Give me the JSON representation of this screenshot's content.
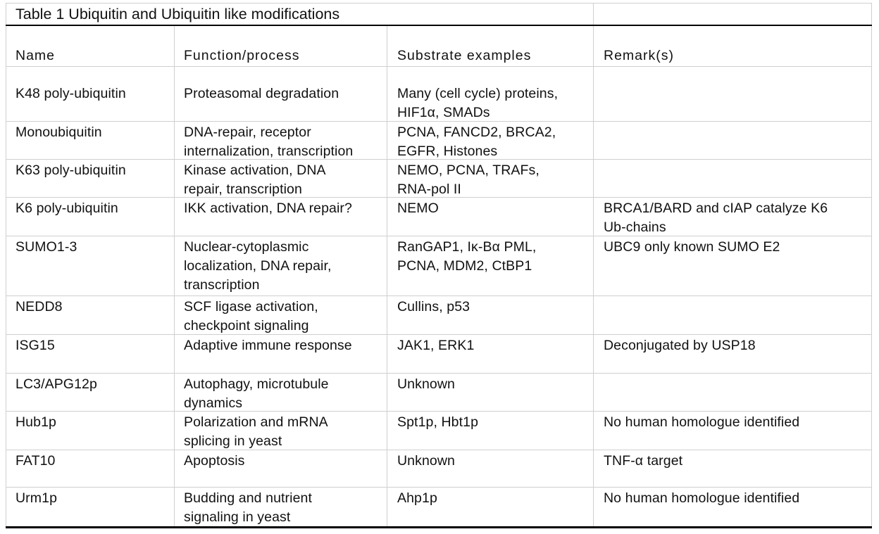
{
  "table": {
    "title": "Table 1 Ubiquitin and Ubiquitin like modifications",
    "headers": [
      "Name",
      "Function/process",
      "Substrate examples",
      "Remark(s)"
    ],
    "rows": [
      {
        "name": "K48 poly-ubiquitin",
        "function": [
          "Proteasomal degradation"
        ],
        "substrates": [
          "Many (cell cycle) proteins,",
          "HIF1α, SMADs"
        ],
        "remarks": []
      },
      {
        "name": "Monoubiquitin",
        "function": [
          "DNA-repair, receptor",
          "internalization, transcription"
        ],
        "substrates": [
          "PCNA, FANCD2, BRCA2,",
          "EGFR, Histones"
        ],
        "remarks": []
      },
      {
        "name": "K63 poly-ubiquitin",
        "function": [
          "Kinase activation, DNA",
          "repair, transcription"
        ],
        "substrates": [
          "NEMO, PCNA, TRAFs,",
          "RNA-pol II"
        ],
        "remarks": []
      },
      {
        "name": "K6 poly-ubiquitin",
        "function": [
          "IKK activation, DNA repair?"
        ],
        "substrates": [
          "NEMO"
        ],
        "remarks": [
          "BRCA1/BARD and cIAP catalyze K6",
          "Ub-chains"
        ]
      },
      {
        "name": "SUMO1-3",
        "function": [
          "Nuclear-cytoplasmic",
          "localization, DNA repair,",
          "transcription"
        ],
        "substrates": [
          "RanGAP1, Iκ-Bα PML,",
          "PCNA, MDM2, CtBP1"
        ],
        "remarks": [
          "UBC9 only known SUMO E2"
        ]
      },
      {
        "name": "NEDD8",
        "function": [
          "SCF ligase activation,",
          "checkpoint signaling"
        ],
        "substrates": [
          "Cullins, p53"
        ],
        "remarks": []
      },
      {
        "name": "ISG15",
        "function": [
          "Adaptive immune response"
        ],
        "substrates": [
          "JAK1, ERK1"
        ],
        "remarks": [
          "Deconjugated by USP18"
        ]
      },
      {
        "name": "LC3/APG12p",
        "function": [
          "Autophagy, microtubule",
          "dynamics"
        ],
        "substrates": [
          "Unknown"
        ],
        "remarks": []
      },
      {
        "name": "Hub1p",
        "function": [
          "Polarization and mRNA",
          "splicing in yeast"
        ],
        "substrates": [
          "Spt1p, Hbt1p"
        ],
        "remarks": [
          "No human homologue identified"
        ]
      },
      {
        "name": "FAT10",
        "function": [
          "Apoptosis"
        ],
        "substrates": [
          "Unknown"
        ],
        "remarks": [
          "TNF-α target"
        ]
      },
      {
        "name": "Urm1p",
        "function": [
          "Budding and nutrient",
          "signaling in yeast"
        ],
        "substrates": [
          "Ahp1p"
        ],
        "remarks": [
          "No human homologue identified"
        ]
      }
    ]
  }
}
